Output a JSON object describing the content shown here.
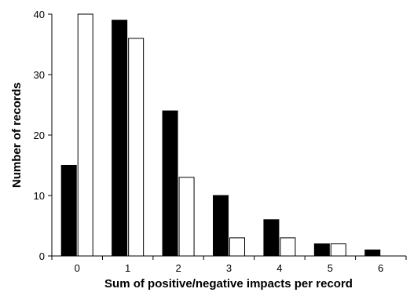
{
  "chart_data": {
    "type": "bar",
    "title": "",
    "xlabel": "Sum of positive/negative impacts per record",
    "ylabel": "Number of records",
    "categories": [
      "0",
      "1",
      "2",
      "3",
      "4",
      "5",
      "6"
    ],
    "series": [
      {
        "values": [
          15,
          39,
          24,
          10,
          6,
          2,
          1
        ],
        "fill": "#000000"
      },
      {
        "values": [
          40,
          36,
          13,
          3,
          3,
          2,
          0
        ],
        "fill": "#ffffff"
      }
    ],
    "ylim": [
      0,
      40
    ],
    "yticks": [
      {
        "value": 0,
        "label": "0"
      },
      {
        "value": 10,
        "label": "10"
      },
      {
        "value": 20,
        "label": "20"
      },
      {
        "value": 30,
        "label": "30"
      },
      {
        "value": 40,
        "label": "40"
      }
    ],
    "grid": false,
    "legend": "none"
  }
}
